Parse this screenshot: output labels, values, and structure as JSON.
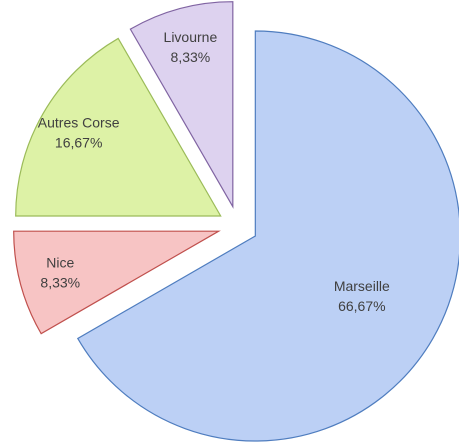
{
  "chart_data": {
    "type": "pie",
    "categories": [
      "Marseille",
      "Nice",
      "Autres Corse",
      "Livourne"
    ],
    "values": [
      66.67,
      8.33,
      16.67,
      8.33
    ],
    "value_labels": [
      "66,67%",
      "8,33%",
      "16,67%",
      "8,33%"
    ],
    "colors": [
      "#bcd0f5",
      "#f7c4c4",
      "#ddf2a6",
      "#ddd2ef"
    ],
    "stroke_colors": [
      "#4f7dbf",
      "#c0504d",
      "#9bbb59",
      "#8064a2"
    ],
    "exploded": true
  }
}
